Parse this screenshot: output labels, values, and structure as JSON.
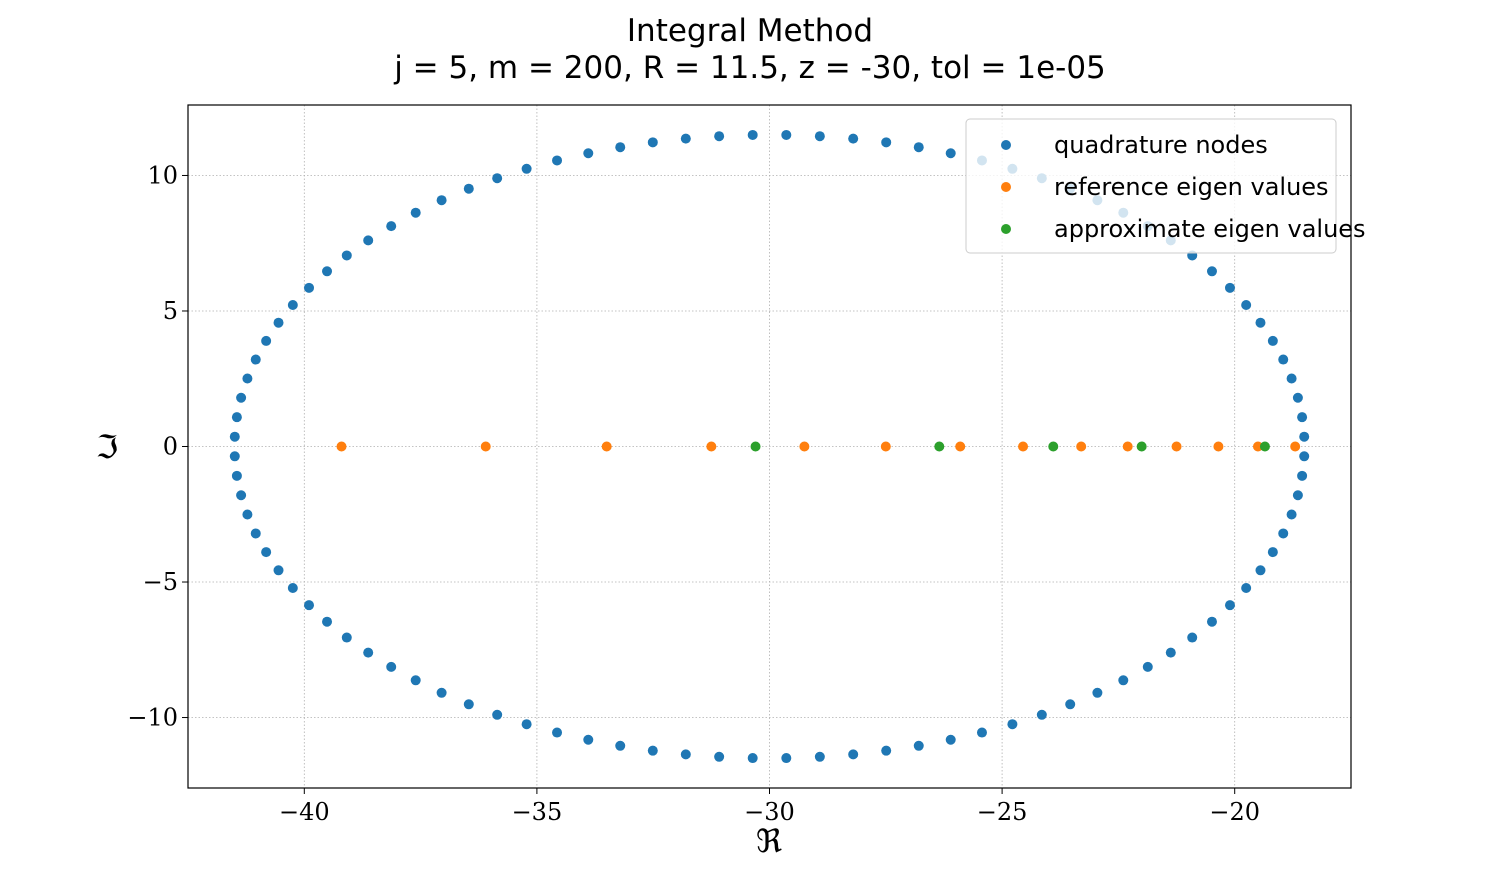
{
  "chart_data": {
    "type": "scatter",
    "title": "Integral Method",
    "subtitle": "j = 5, m = 200, R = 11.5, z = -30, tol = 1e-05",
    "xlabel": "ℜ",
    "ylabel": "ℑ",
    "xlim": [
      -42.5,
      -17.5
    ],
    "ylim": [
      -12.6,
      12.6
    ],
    "xticks": [
      -40,
      -35,
      -30,
      -25,
      -20
    ],
    "yticks": [
      -10,
      -5,
      0,
      5,
      10
    ],
    "xtick_labels": [
      "−40",
      "−35",
      "−30",
      "−25",
      "−20"
    ],
    "ytick_labels": [
      "−10",
      "−5",
      "0",
      "5",
      "10"
    ],
    "grid": true,
    "legend_position": "top-right",
    "colors": {
      "quadrature": "#1f77b4",
      "reference": "#ff7f0e",
      "approximate": "#2ca02c",
      "grid": "#b0b0b0"
    },
    "series": [
      {
        "name": "quadrature nodes",
        "color": "#1f77b4",
        "ellipse": {
          "center_re": -30,
          "center_im": 0,
          "radius_re": 11.5,
          "radius_im": 11.5,
          "count": 100,
          "start_angle_deg": 1.8
        }
      },
      {
        "name": "reference eigen values",
        "color": "#ff7f0e",
        "x": [
          -39.2,
          -36.1,
          -33.5,
          -31.25,
          -29.25,
          -27.5,
          -25.9,
          -24.55,
          -23.3,
          -22.3,
          -21.25,
          -20.35,
          -19.5,
          -18.7
        ],
        "y": [
          0,
          0,
          0,
          0,
          0,
          0,
          0,
          0,
          0,
          0,
          0,
          0,
          0,
          0
        ]
      },
      {
        "name": "approximate eigen values",
        "color": "#2ca02c",
        "x": [
          -30.3,
          -26.35,
          -23.9,
          -22.0,
          -19.35
        ],
        "y": [
          0,
          0,
          0,
          0,
          0
        ]
      }
    ]
  }
}
